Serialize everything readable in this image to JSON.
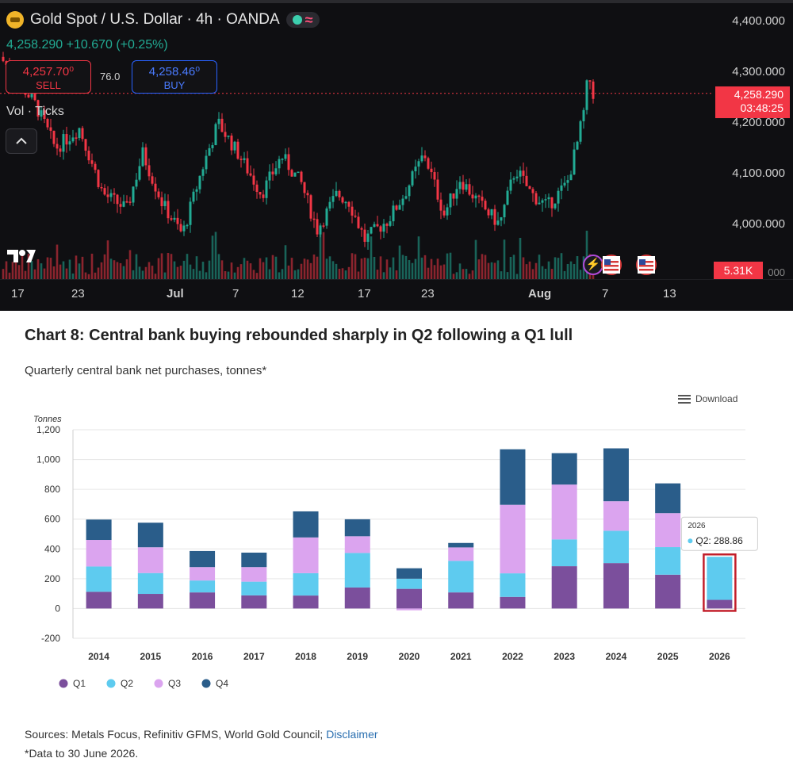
{
  "tv": {
    "symbol": "Gold Spot / U.S. Dollar · 4h · OANDA",
    "price_line": "4,258.290  +10.670 (+0.25%)",
    "sell_price": "4,257.70⁰",
    "sell_label": "SELL",
    "buy_price": "4,258.46⁰",
    "buy_label": "BUY",
    "spread": "76.0",
    "vol_label": "Vol · Ticks",
    "logo": "17",
    "y_axis": [
      "4,400.000",
      "4,300.000",
      "4,200.000",
      "4,100.000",
      "4,000.000"
    ],
    "price_tag": "4,258.290",
    "countdown": "03:48:25",
    "vol_tag": "5.31K",
    "x_axis": [
      "17",
      "23",
      "Jul",
      "7",
      "12",
      "17",
      "23",
      "Aug",
      "7",
      "13"
    ],
    "colors": {
      "up": "#22ab94",
      "down": "#f23645",
      "bg": "#0f0f12"
    },
    "icons": [
      "gold-symbol-icon",
      "live-indicator-icon",
      "chevron-up-icon",
      "lightning-icon",
      "us-flag-icon"
    ]
  },
  "chart": {
    "title": "Chart 8: Central bank buying rebounded sharply in Q2 following a Q1 lull",
    "subtitle": "Quarterly central bank net purchases, tonnes*",
    "download_label": "Download",
    "sources_text": "Sources: Metals Focus, Refinitiv GFMS, World Gold Council; ",
    "sources_link": "Disclaimer",
    "footnote": "*Data to 30 June 2026.",
    "tooltip_year": "2026",
    "tooltip_text": "Q2: 288.86"
  },
  "chart_data": {
    "type": "bar",
    "stacked": true,
    "title": "Chart 8: Central bank buying rebounded sharply in Q2 following a Q1 lull",
    "subtitle": "Quarterly central bank net purchases, tonnes*",
    "ylabel": "Tonnes",
    "ylim": [
      -200,
      1200
    ],
    "yticks": [
      -200,
      0,
      200,
      400,
      600,
      800,
      1000,
      1200
    ],
    "ytick_labels": [
      "-200",
      "0",
      "200",
      "400",
      "600",
      "800",
      "1,000",
      "1,200"
    ],
    "categories": [
      "2014",
      "2015",
      "2016",
      "2017",
      "2018",
      "2019",
      "2020",
      "2021",
      "2022",
      "2023",
      "2024",
      "2025",
      "2026"
    ],
    "series": [
      {
        "name": "Q1",
        "color": "#7b4f9c",
        "values": [
          112,
          98,
          108,
          88,
          87,
          141,
          132,
          108,
          78,
          284,
          305,
          227,
          58
        ]
      },
      {
        "name": "Q2",
        "color": "#5ecbef",
        "values": [
          170,
          140,
          80,
          92,
          150,
          232,
          68,
          212,
          158,
          180,
          217,
          185,
          289
        ]
      },
      {
        "name": "Q3",
        "color": "#dba4ef",
        "values": [
          178,
          173,
          90,
          98,
          240,
          112,
          -12,
          90,
          460,
          368,
          198,
          228,
          0
        ]
      },
      {
        "name": "Q4",
        "color": "#2a5d8a",
        "values": [
          137,
          165,
          108,
          97,
          175,
          114,
          70,
          30,
          373,
          211,
          355,
          200,
          0
        ]
      }
    ],
    "legend_position": "bottom-left",
    "grid": true,
    "highlight_category": "2026"
  }
}
